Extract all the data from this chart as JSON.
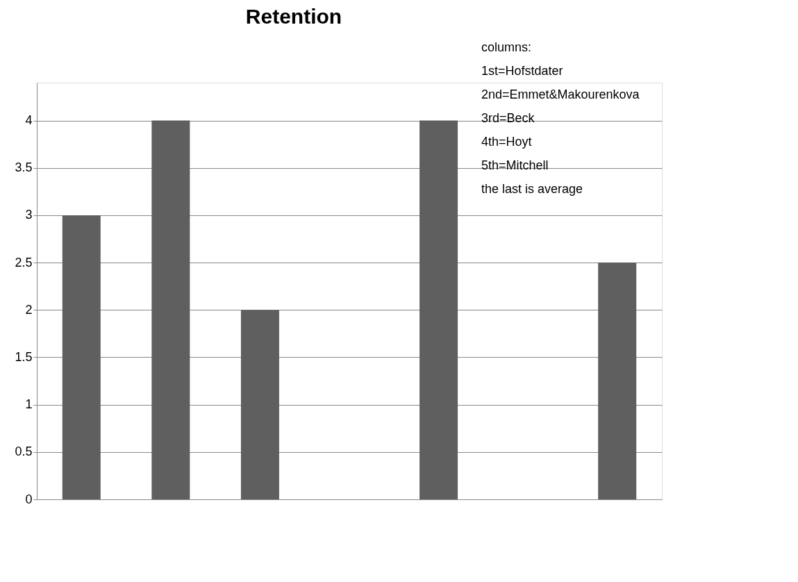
{
  "chart_data": {
    "type": "bar",
    "title": "Retention",
    "categories": [
      null,
      null,
      null,
      null,
      null,
      null,
      null
    ],
    "values": [
      3,
      4,
      2,
      0,
      4,
      null,
      2.5
    ],
    "color": "#5f5f5f",
    "ylim": [
      0,
      4.4
    ],
    "yticks": [
      0,
      0.5,
      1,
      1.5,
      2,
      2.5,
      3,
      3.5,
      4
    ],
    "grid": "y",
    "tick_labels": "y",
    "annotations": [
      "columns:",
      "1st=Hofstdater",
      "2nd=Emmet&Makourenkova",
      "3rd=Beck",
      "4th=Hoyt",
      "5th=Mitchell",
      "the last is average"
    ]
  }
}
